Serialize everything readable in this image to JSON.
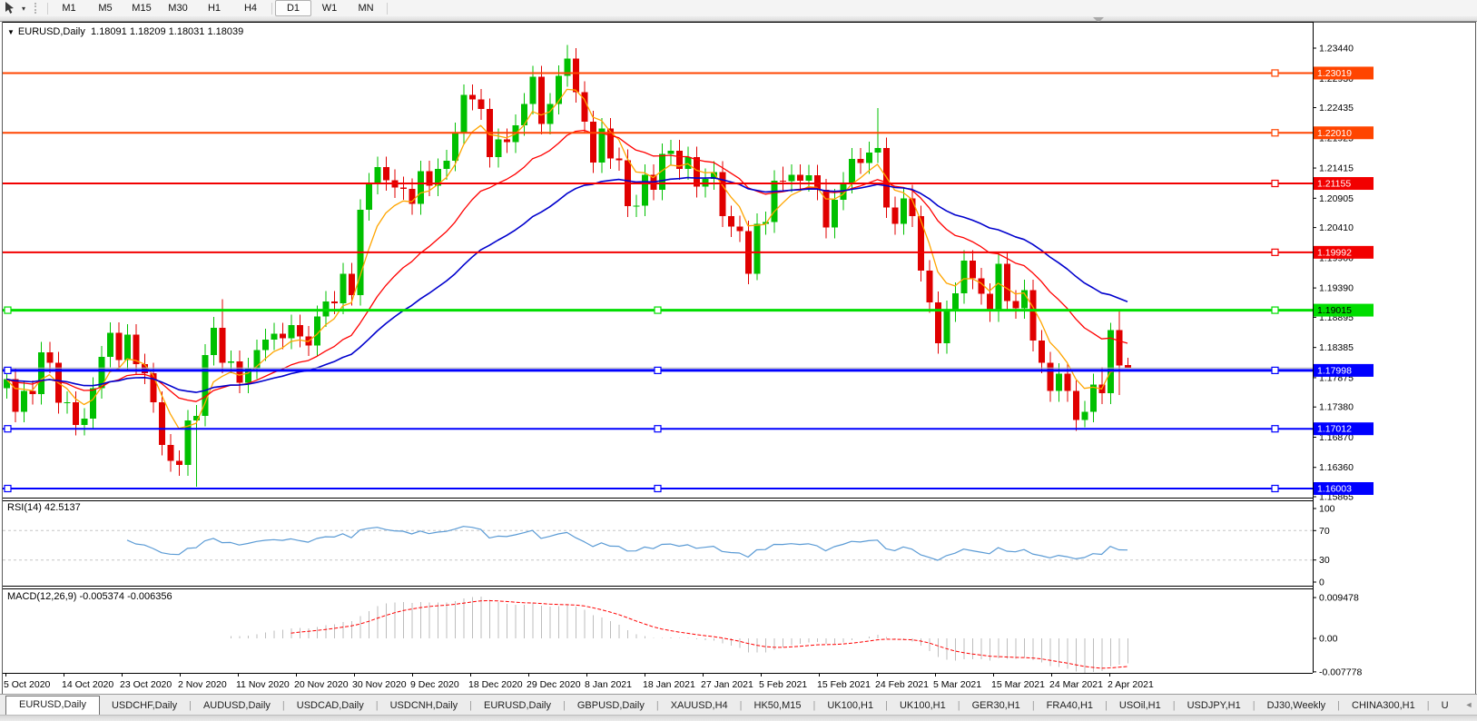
{
  "toolbar": {
    "timeframes": [
      "M1",
      "M5",
      "M15",
      "M30",
      "H1",
      "H4",
      "D1",
      "W1",
      "MN"
    ],
    "active_timeframe": "D1",
    "left_icons": [
      "crosshair-cursor-icon",
      "dropdown-caret-icon",
      "toolbar-grip-handle"
    ]
  },
  "window": {
    "title": "EURUSD,Daily",
    "ohlc": "1.18091 1.18209 1.18031 1.18039",
    "context_icon": "▼"
  },
  "price_axis": {
    "ticks": [
      "1.23440",
      "1.22930",
      "1.22435",
      "1.21925",
      "1.21415",
      "1.20905",
      "1.20410",
      "1.19900",
      "1.19390",
      "1.18895",
      "1.18385",
      "1.17875",
      "1.17380",
      "1.16870",
      "1.16360",
      "1.15865"
    ]
  },
  "hlines": [
    {
      "price": 1.23019,
      "label": "1.23019",
      "color": "#FF4500",
      "width": 2,
      "tag_fg": "#FFFFFF",
      "squares": [
        "right"
      ]
    },
    {
      "price": 1.2201,
      "label": "1.22010",
      "color": "#FF4500",
      "width": 2,
      "tag_fg": "#FFFFFF",
      "squares": [
        "right"
      ]
    },
    {
      "price": 1.21155,
      "label": "1.21155",
      "color": "#F20000",
      "width": 2,
      "tag_fg": "#FFFFFF",
      "squares": [
        "right"
      ]
    },
    {
      "price": 1.19992,
      "label": "1.19992",
      "color": "#F20000",
      "width": 2,
      "tag_fg": "#FFFFFF",
      "squares": [
        "right"
      ]
    },
    {
      "price": 1.19015,
      "label": "1.19015",
      "color": "#00DD00",
      "width": 3,
      "tag_fg": "#000000",
      "squares": [
        "left",
        "mid",
        "right"
      ]
    },
    {
      "price": 1.17998,
      "label": "1.17998",
      "color": "#0000FF",
      "width": 3,
      "tag_fg": "#FFFFFF",
      "squares": [
        "left",
        "mid",
        "right"
      ]
    },
    {
      "price": 1.17012,
      "label": "1.17012",
      "color": "#0000FF",
      "width": 2,
      "tag_fg": "#FFFFFF",
      "squares": [
        "left",
        "mid",
        "right"
      ]
    },
    {
      "price": 1.16003,
      "label": "1.16003",
      "color": "#0000FF",
      "width": 2,
      "tag_fg": "#FFFFFF",
      "squares": [
        "left",
        "mid",
        "right"
      ]
    }
  ],
  "bid_line": {
    "price": 1.18039,
    "color": "#B4B4B4"
  },
  "rsi": {
    "label": "RSI(14) 42.5137",
    "value": 42.5137,
    "period": 14,
    "line_color": "#5B9BD5",
    "levels": [
      70,
      30
    ],
    "ticks": [
      "100",
      "70",
      "30",
      "0"
    ],
    "tick_values": [
      100,
      70,
      30,
      0
    ]
  },
  "macd": {
    "label": "MACD(12,26,9) -0.005374 -0.006356",
    "main_value": -0.005374,
    "signal_value": -0.006356,
    "params": [
      12,
      26,
      9
    ],
    "histogram_color": "#BDBDBD",
    "signal_color": "#FF0000",
    "ticks": [
      "0.009478",
      "0.00",
      "-0.007778"
    ],
    "tick_values": [
      0.009478,
      0.0,
      -0.007778
    ]
  },
  "date_axis": [
    "5 Oct 2020",
    "14 Oct 2020",
    "23 Oct 2020",
    "2 Nov 2020",
    "11 Nov 2020",
    "20 Nov 2020",
    "30 Nov 2020",
    "9 Dec 2020",
    "18 Dec 2020",
    "29 Dec 2020",
    "8 Jan 2021",
    "18 Jan 2021",
    "27 Jan 2021",
    "5 Feb 2021",
    "15 Feb 2021",
    "24 Feb 2021",
    "5 Mar 2021",
    "15 Mar 2021",
    "24 Mar 2021",
    "2 Apr 2021"
  ],
  "tabs": {
    "items": [
      {
        "label": "EURUSD,Daily",
        "active": true
      },
      {
        "label": "USDCHF,Daily",
        "active": false
      },
      {
        "label": "AUDUSD,Daily",
        "active": false
      },
      {
        "label": "USDCAD,Daily",
        "active": false
      },
      {
        "label": "USDCNH,Daily",
        "active": false
      },
      {
        "label": "EURUSD,Daily",
        "active": false
      },
      {
        "label": "GBPUSD,Daily",
        "active": false
      },
      {
        "label": "XAUUSD,H4",
        "active": false
      },
      {
        "label": "HK50,M15",
        "active": false
      },
      {
        "label": "UK100,H1",
        "active": false
      },
      {
        "label": "UK100,H1",
        "active": false
      },
      {
        "label": "GER30,H1",
        "active": false
      },
      {
        "label": "FRA40,H1",
        "active": false
      },
      {
        "label": "USOil,H1",
        "active": false
      },
      {
        "label": "USDJPY,H1",
        "active": false
      },
      {
        "label": "DJ30,Weekly",
        "active": false
      },
      {
        "label": "CHINA300,H1",
        "active": false
      },
      {
        "label": "U",
        "active": false,
        "truncated": true
      }
    ],
    "scroll_left": "◄",
    "scroll_right": "►"
  },
  "chart_data": {
    "type": "candlestick",
    "symbol": "EURUSD",
    "timeframe": "Daily",
    "title": "EURUSD,Daily 1.18091 1.18209 1.18031 1.18039",
    "x_labels": [
      "5 Oct 2020",
      "14 Oct 2020",
      "23 Oct 2020",
      "2 Nov 2020",
      "11 Nov 2020",
      "20 Nov 2020",
      "30 Nov 2020",
      "9 Dec 2020",
      "18 Dec 2020",
      "29 Dec 2020",
      "8 Jan 2021",
      "18 Jan 2021",
      "27 Jan 2021",
      "5 Feb 2021",
      "15 Feb 2021",
      "24 Feb 2021",
      "5 Mar 2021",
      "15 Mar 2021",
      "24 Mar 2021",
      "2 Apr 2021"
    ],
    "y_range": [
      1.15835,
      1.2379
    ],
    "up_color": "#00C000",
    "down_color": "#E00000",
    "moving_averages": [
      {
        "name": "fast",
        "period": 6,
        "color": "#FFA500"
      },
      {
        "name": "medium",
        "period": 20,
        "color": "#FF0000"
      },
      {
        "name": "slow",
        "period": 40,
        "color": "#0000CD"
      }
    ],
    "candles": [
      [
        1.177,
        1.1803,
        1.1752,
        1.1785
      ],
      [
        1.1785,
        1.1803,
        1.1712,
        1.173
      ],
      [
        1.173,
        1.1783,
        1.1712,
        1.1765
      ],
      [
        1.1765,
        1.1783,
        1.1742,
        1.176
      ],
      [
        1.176,
        1.1848,
        1.1742,
        1.183
      ],
      [
        1.183,
        1.1848,
        1.1795,
        1.1813
      ],
      [
        1.1813,
        1.1831,
        1.1727,
        1.1745
      ],
      [
        1.1745,
        1.1764,
        1.1727,
        1.1746
      ],
      [
        1.1746,
        1.1764,
        1.169,
        1.1708
      ],
      [
        1.1708,
        1.1736,
        1.169,
        1.1718
      ],
      [
        1.1718,
        1.1788,
        1.17,
        1.177
      ],
      [
        1.177,
        1.1841,
        1.1752,
        1.1823
      ],
      [
        1.1823,
        1.1881,
        1.1805,
        1.1863
      ],
      [
        1.1863,
        1.1881,
        1.1799,
        1.1817
      ],
      [
        1.1817,
        1.1878,
        1.1799,
        1.186
      ],
      [
        1.186,
        1.1878,
        1.1792,
        1.181
      ],
      [
        1.181,
        1.1828,
        1.1777,
        1.1795
      ],
      [
        1.1795,
        1.1813,
        1.1728,
        1.1746
      ],
      [
        1.1746,
        1.1764,
        1.1656,
        1.1674
      ],
      [
        1.1674,
        1.1692,
        1.1629,
        1.1647
      ],
      [
        1.1647,
        1.1665,
        1.1622,
        1.164
      ],
      [
        1.164,
        1.1733,
        1.1622,
        1.1715
      ],
      [
        1.1715,
        1.1741,
        1.1603,
        1.1723
      ],
      [
        1.1723,
        1.1844,
        1.1705,
        1.1826
      ],
      [
        1.1826,
        1.189,
        1.1808,
        1.1872
      ],
      [
        1.1872,
        1.192,
        1.1795,
        1.1813
      ],
      [
        1.1813,
        1.1833,
        1.1795,
        1.1815
      ],
      [
        1.1815,
        1.1833,
        1.1761,
        1.1779
      ],
      [
        1.1779,
        1.1821,
        1.1761,
        1.1803
      ],
      [
        1.1803,
        1.1852,
        1.1785,
        1.1834
      ],
      [
        1.1834,
        1.187,
        1.1816,
        1.1852
      ],
      [
        1.1852,
        1.188,
        1.1834,
        1.1862
      ],
      [
        1.1862,
        1.188,
        1.1836,
        1.1854
      ],
      [
        1.1854,
        1.1894,
        1.1836,
        1.1876
      ],
      [
        1.1876,
        1.1894,
        1.1839,
        1.1857
      ],
      [
        1.1857,
        1.1875,
        1.1824,
        1.1842
      ],
      [
        1.1842,
        1.1909,
        1.1824,
        1.1891
      ],
      [
        1.1891,
        1.1934,
        1.1873,
        1.1916
      ],
      [
        1.1916,
        1.1934,
        1.1895,
        1.1913
      ],
      [
        1.1913,
        1.1981,
        1.1895,
        1.1963
      ],
      [
        1.1963,
        1.1981,
        1.1909,
        1.1927
      ],
      [
        1.1927,
        1.2089,
        1.1909,
        1.2071
      ],
      [
        1.2071,
        1.2133,
        1.2053,
        1.2115
      ],
      [
        1.2115,
        1.2161,
        1.2097,
        1.2143
      ],
      [
        1.2143,
        1.2161,
        1.2103,
        1.2121
      ],
      [
        1.2121,
        1.2139,
        1.2091,
        1.2109
      ],
      [
        1.2109,
        1.2127,
        1.2088,
        1.2106
      ],
      [
        1.2106,
        1.2124,
        1.2063,
        1.2081
      ],
      [
        1.2081,
        1.2154,
        1.2063,
        1.2136
      ],
      [
        1.2136,
        1.2154,
        1.2094,
        1.2112
      ],
      [
        1.2112,
        1.2158,
        1.2094,
        1.214
      ],
      [
        1.214,
        1.2172,
        1.2122,
        1.2154
      ],
      [
        1.2154,
        1.2218,
        1.2136,
        1.22
      ],
      [
        1.22,
        1.2283,
        1.2182,
        1.2265
      ],
      [
        1.2265,
        1.2283,
        1.2239,
        1.2257
      ],
      [
        1.2257,
        1.2275,
        1.2223,
        1.2241
      ],
      [
        1.2241,
        1.2259,
        1.2142,
        1.216
      ],
      [
        1.216,
        1.2208,
        1.2142,
        1.219
      ],
      [
        1.219,
        1.2208,
        1.2167,
        1.2185
      ],
      [
        1.2185,
        1.2232,
        1.2167,
        1.2214
      ],
      [
        1.2214,
        1.2268,
        1.2196,
        1.225
      ],
      [
        1.225,
        1.2314,
        1.2232,
        1.2296
      ],
      [
        1.2296,
        1.2314,
        1.2198,
        1.2216
      ],
      [
        1.2216,
        1.2268,
        1.2198,
        1.225
      ],
      [
        1.225,
        1.2315,
        1.2232,
        1.2297
      ],
      [
        1.2297,
        1.2349,
        1.2279,
        1.2326
      ],
      [
        1.2326,
        1.2344,
        1.2252,
        1.227
      ],
      [
        1.227,
        1.2288,
        1.2202,
        1.222
      ],
      [
        1.222,
        1.2238,
        1.2133,
        1.2151
      ],
      [
        1.2151,
        1.2226,
        1.2133,
        1.2208
      ],
      [
        1.2208,
        1.2226,
        1.214,
        1.2158
      ],
      [
        1.2158,
        1.2176,
        1.2137,
        1.2155
      ],
      [
        1.2155,
        1.2173,
        1.2059,
        1.2077
      ],
      [
        1.2077,
        1.2096,
        1.2059,
        1.2078
      ],
      [
        1.2078,
        1.2148,
        1.206,
        1.213
      ],
      [
        1.213,
        1.2148,
        1.2087,
        1.2105
      ],
      [
        1.2105,
        1.2183,
        1.2087,
        1.2165
      ],
      [
        1.2165,
        1.2189,
        1.2147,
        1.2171
      ],
      [
        1.2171,
        1.2189,
        1.2122,
        1.214
      ],
      [
        1.214,
        1.2178,
        1.2122,
        1.216
      ],
      [
        1.216,
        1.2178,
        1.2092,
        1.211
      ],
      [
        1.211,
        1.2141,
        1.2092,
        1.2123
      ],
      [
        1.2123,
        1.2153,
        1.2105,
        1.2135
      ],
      [
        1.2135,
        1.2153,
        1.2042,
        1.206
      ],
      [
        1.206,
        1.2078,
        1.2025,
        1.2043
      ],
      [
        1.2043,
        1.2061,
        1.2017,
        1.2035
      ],
      [
        1.2035,
        1.2053,
        1.1945,
        1.1963
      ],
      [
        1.1963,
        1.2065,
        1.1952,
        1.2047
      ],
      [
        1.2047,
        1.2068,
        1.2029,
        1.205
      ],
      [
        1.205,
        1.2138,
        1.2032,
        1.212
      ],
      [
        1.212,
        1.2144,
        1.2101,
        1.2119
      ],
      [
        1.2119,
        1.2148,
        1.2101,
        1.213
      ],
      [
        1.213,
        1.2148,
        1.2102,
        1.212
      ],
      [
        1.212,
        1.2147,
        1.2102,
        1.2129
      ],
      [
        1.2129,
        1.2147,
        1.2087,
        1.2105
      ],
      [
        1.2105,
        1.2123,
        1.2023,
        1.2041
      ],
      [
        1.2041,
        1.2106,
        1.2023,
        1.2088
      ],
      [
        1.2088,
        1.2135,
        1.207,
        1.2117
      ],
      [
        1.2117,
        1.2175,
        1.2099,
        1.2157
      ],
      [
        1.2157,
        1.2175,
        1.2132,
        1.215
      ],
      [
        1.215,
        1.2186,
        1.2132,
        1.2168
      ],
      [
        1.2168,
        1.2243,
        1.215,
        1.2175
      ],
      [
        1.2175,
        1.2193,
        1.2057,
        1.2075
      ],
      [
        1.2075,
        1.2093,
        1.2029,
        1.2047
      ],
      [
        1.2047,
        1.2108,
        1.2029,
        1.209
      ],
      [
        1.209,
        1.2113,
        1.2042,
        1.206
      ],
      [
        1.206,
        1.2078,
        1.195,
        1.1968
      ],
      [
        1.1968,
        1.1986,
        1.1897,
        1.1915
      ],
      [
        1.1915,
        1.1933,
        1.1828,
        1.1846
      ],
      [
        1.1846,
        1.1918,
        1.1828,
        1.19
      ],
      [
        1.19,
        1.1948,
        1.1882,
        1.193
      ],
      [
        1.193,
        1.2003,
        1.1912,
        1.1985
      ],
      [
        1.1985,
        1.2003,
        1.1937,
        1.1955
      ],
      [
        1.1955,
        1.1973,
        1.1911,
        1.1929
      ],
      [
        1.1929,
        1.1947,
        1.1882,
        1.19
      ],
      [
        1.19,
        1.1998,
        1.1882,
        1.198
      ],
      [
        1.198,
        1.1998,
        1.1899,
        1.1917
      ],
      [
        1.1917,
        1.1935,
        1.1887,
        1.1905
      ],
      [
        1.1905,
        1.1953,
        1.1887,
        1.1935
      ],
      [
        1.1935,
        1.1953,
        1.1832,
        1.185
      ],
      [
        1.185,
        1.1868,
        1.1795,
        1.1813
      ],
      [
        1.1813,
        1.1831,
        1.1747,
        1.1765
      ],
      [
        1.1765,
        1.1812,
        1.1747,
        1.1794
      ],
      [
        1.1794,
        1.1812,
        1.1747,
        1.1765
      ],
      [
        1.1765,
        1.1783,
        1.1698,
        1.1716
      ],
      [
        1.1716,
        1.1748,
        1.1704,
        1.173
      ],
      [
        1.173,
        1.1794,
        1.1712,
        1.1776
      ],
      [
        1.1776,
        1.1805,
        1.1743,
        1.1761
      ],
      [
        1.1761,
        1.188,
        1.1743,
        1.1868
      ],
      [
        1.1868,
        1.1902,
        1.1758,
        1.1808
      ],
      [
        1.18091,
        1.18209,
        1.18031,
        1.18039
      ]
    ]
  }
}
